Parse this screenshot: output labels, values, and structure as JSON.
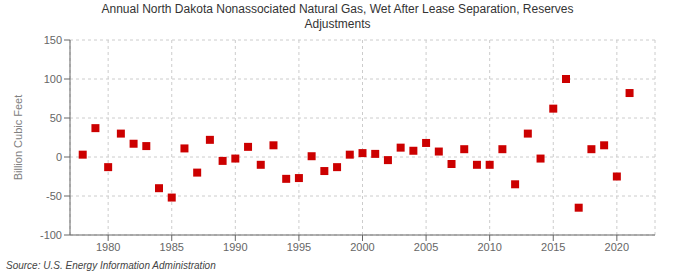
{
  "chart_data": {
    "type": "scatter",
    "title": "Annual North Dakota Nonassociated Natural Gas, Wet After Lease Separation, Reserves\nAdjustments",
    "ylabel": "Billion Cubic Feet",
    "annotation": "Source: U.S. Energy Information Administration",
    "color": "#cc0000",
    "marker": "square",
    "grid": true,
    "x": [
      1978,
      1979,
      1980,
      1981,
      1982,
      1983,
      1984,
      1985,
      1986,
      1987,
      1988,
      1989,
      1990,
      1991,
      1992,
      1993,
      1994,
      1995,
      1996,
      1997,
      1998,
      1999,
      2000,
      2001,
      2002,
      2003,
      2004,
      2005,
      2006,
      2007,
      2008,
      2009,
      2010,
      2011,
      2012,
      2013,
      2014,
      2015,
      2016,
      2017,
      2018,
      2019,
      2020,
      2021
    ],
    "values": [
      3,
      37,
      -13,
      30,
      17,
      14,
      -40,
      -52,
      11,
      -20,
      22,
      -5,
      -2,
      13,
      -10,
      15,
      -28,
      -27,
      1,
      -18,
      -13,
      3,
      5,
      4,
      -4,
      12,
      8,
      18,
      7,
      -9,
      10,
      -10,
      -10,
      10,
      -35,
      30,
      -2,
      62,
      100,
      -65,
      10,
      15,
      -25,
      82
    ],
    "xlim": [
      1977,
      2023
    ],
    "ylim": [
      -100,
      150
    ],
    "xticks": [
      1980,
      1985,
      1990,
      1995,
      2000,
      2005,
      2010,
      2015,
      2020
    ],
    "yticks": [
      -100,
      -50,
      0,
      50,
      100,
      150
    ]
  }
}
